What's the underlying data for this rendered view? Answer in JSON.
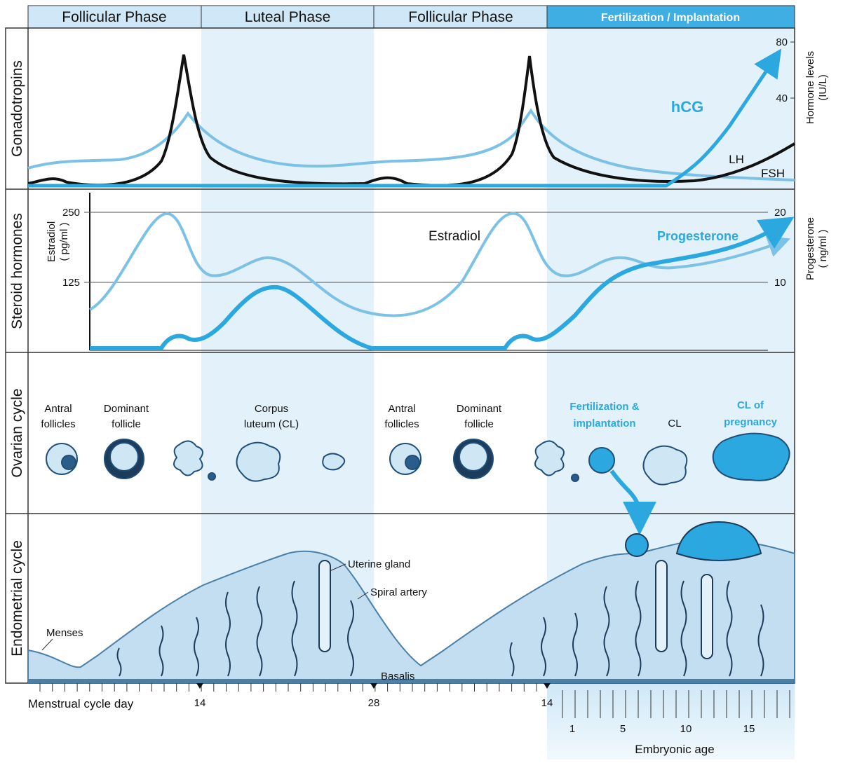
{
  "phases": [
    "Follicular Phase",
    "Luteal Phase",
    "Follicular Phase",
    "Fertilization / Implantation"
  ],
  "row_labels": [
    "Gonadotropins",
    "Steroid hormones",
    "Ovarian cycle",
    "Endometrial cycle"
  ],
  "gonadotropins": {
    "axis_title": [
      "Hormone levels",
      "(IU/L)"
    ],
    "ticks": [
      80,
      40
    ],
    "curves": [
      "hCG",
      "LH",
      "FSH"
    ]
  },
  "steroids": {
    "left_axis_title": [
      "Estradiol",
      "( pg/ml )"
    ],
    "left_ticks": [
      250,
      125
    ],
    "right_axis_title": [
      "Progesterone",
      "( ng/ml )"
    ],
    "right_ticks": [
      20,
      10
    ],
    "curves": [
      "Estradiol",
      "Progesterone"
    ]
  },
  "ovarian": {
    "labels": [
      [
        "Antral",
        "follicles"
      ],
      [
        "Dominant",
        "follicle"
      ],
      [
        "Corpus",
        "luteum (CL)"
      ],
      [
        "Antral",
        "follicles"
      ],
      [
        "Dominant",
        "follicle"
      ],
      [
        "Fertilization &",
        "implantation"
      ],
      [
        "CL"
      ],
      [
        "CL of",
        "pregnancy"
      ]
    ]
  },
  "endometrial": {
    "labels": [
      "Menses",
      "Uterine gland",
      "Spiral artery",
      "Basalis"
    ]
  },
  "axis": {
    "label": "Menstrual cycle day",
    "days": [
      14,
      28,
      14
    ],
    "embryonic_ticks": [
      1,
      5,
      10,
      15
    ],
    "embryonic_label": "Embryonic age"
  }
}
